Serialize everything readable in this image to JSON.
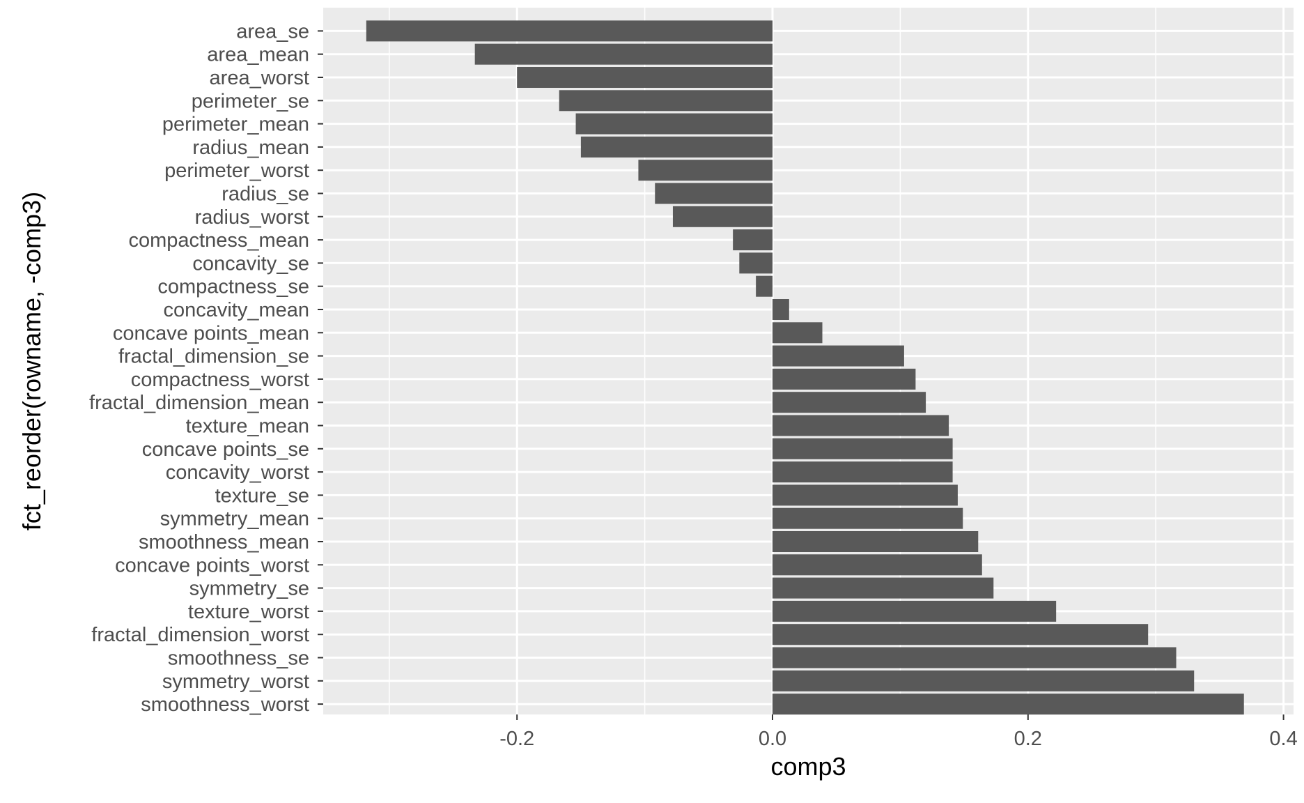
{
  "colors": {
    "panel_background": "#ebebeb",
    "grid_major": "#ffffff",
    "bar_fill": "#595959",
    "tick_text": "#4d4d4d",
    "axis_title_text": "#000000"
  },
  "chart_data": {
    "type": "bar",
    "orientation": "horizontal",
    "xlabel": "comp3",
    "ylabel": "fct_reorder(rowname, -comp3)",
    "xlim": [
      -0.36,
      0.4
    ],
    "x_ticks": [
      -0.2,
      0.0,
      0.2,
      0.4
    ],
    "x_tick_labels": [
      "-0.2",
      "0.0",
      "0.2",
      "0.4"
    ],
    "grid": true,
    "categories": [
      "area_se",
      "area_mean",
      "area_worst",
      "perimeter_se",
      "perimeter_mean",
      "radius_mean",
      "perimeter_worst",
      "radius_se",
      "radius_worst",
      "compactness_mean",
      "concavity_se",
      "compactness_se",
      "concavity_mean",
      "concave points_mean",
      "fractal_dimension_se",
      "compactness_worst",
      "fractal_dimension_mean",
      "texture_mean",
      "concave points_se",
      "concavity_worst",
      "texture_se",
      "symmetry_mean",
      "smoothness_mean",
      "concave points_worst",
      "symmetry_se",
      "texture_worst",
      "fractal_dimension_worst",
      "smoothness_se",
      "symmetry_worst",
      "smoothness_worst"
    ],
    "values": [
      -0.318,
      -0.233,
      -0.2,
      -0.167,
      -0.154,
      -0.15,
      -0.105,
      -0.092,
      -0.078,
      -0.031,
      -0.026,
      -0.013,
      0.013,
      0.039,
      0.103,
      0.112,
      0.12,
      0.138,
      0.141,
      0.141,
      0.145,
      0.149,
      0.161,
      0.164,
      0.173,
      0.222,
      0.294,
      0.316,
      0.33,
      0.369
    ]
  }
}
